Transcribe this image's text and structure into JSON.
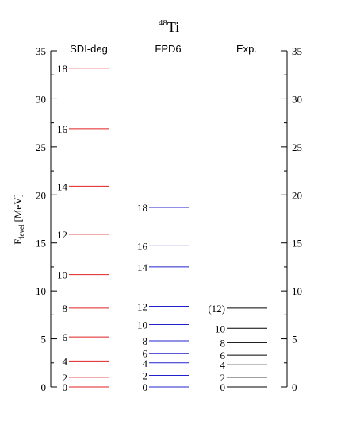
{
  "chart_data": {
    "type": "level-scheme",
    "title_mass": "48",
    "title_element": "Ti",
    "ylabel_main": "E",
    "ylabel_sub": "level",
    "ylabel_unit": "[MeV]",
    "ylim": [
      0,
      35
    ],
    "yticks": [
      0,
      5,
      10,
      15,
      20,
      25,
      30,
      35
    ],
    "columns": [
      {
        "name": "SDI-deg",
        "color": "#dd2222",
        "levels": [
          {
            "label": "0",
            "energy": 0.0
          },
          {
            "label": "2",
            "energy": 1.0
          },
          {
            "label": "4",
            "energy": 2.7
          },
          {
            "label": "6",
            "energy": 5.2
          },
          {
            "label": "8",
            "energy": 8.2
          },
          {
            "label": "10",
            "energy": 11.7
          },
          {
            "label": "12",
            "energy": 15.9
          },
          {
            "label": "14",
            "energy": 20.9
          },
          {
            "label": "16",
            "energy": 26.9
          },
          {
            "label": "18",
            "energy": 33.2
          }
        ]
      },
      {
        "name": "FPD6",
        "color": "#2222cc",
        "levels": [
          {
            "label": "0",
            "energy": 0.0
          },
          {
            "label": "2",
            "energy": 1.2
          },
          {
            "label": "4",
            "energy": 2.5
          },
          {
            "label": "6",
            "energy": 3.5
          },
          {
            "label": "8",
            "energy": 4.8
          },
          {
            "label": "10",
            "energy": 6.5
          },
          {
            "label": "12",
            "energy": 8.4
          },
          {
            "label": "14",
            "energy": 12.5
          },
          {
            "label": "16",
            "energy": 14.7
          },
          {
            "label": "18",
            "energy": 18.7
          }
        ]
      },
      {
        "name": "Exp.",
        "color": "#000000",
        "levels": [
          {
            "label": "0",
            "energy": 0.0
          },
          {
            "label": "2",
            "energy": 1.0
          },
          {
            "label": "4",
            "energy": 2.3
          },
          {
            "label": "6",
            "energy": 3.3
          },
          {
            "label": "8",
            "energy": 4.6
          },
          {
            "label": "10",
            "energy": 6.1
          },
          {
            "label": "(12)",
            "energy": 8.2
          }
        ]
      }
    ]
  }
}
